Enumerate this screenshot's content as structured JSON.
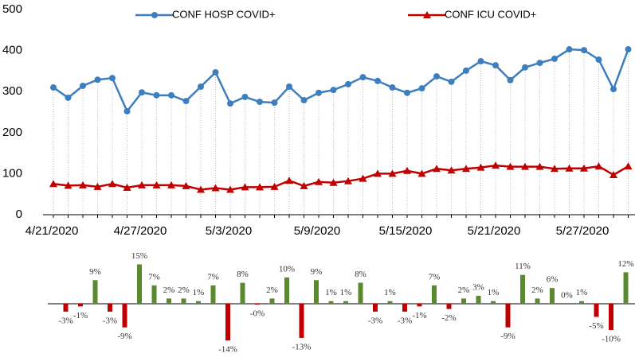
{
  "chart_data": [
    {
      "type": "line",
      "categories": [
        "4/21/2020",
        null,
        null,
        null,
        null,
        null,
        "4/27/2020",
        null,
        null,
        null,
        null,
        null,
        "5/3/2020",
        null,
        null,
        null,
        null,
        null,
        "5/9/2020",
        null,
        null,
        null,
        null,
        null,
        "5/15/2020",
        null,
        null,
        null,
        null,
        null,
        "5/21/2020",
        null,
        null,
        null,
        null,
        null,
        "5/27/2020",
        null,
        null,
        null
      ],
      "series": [
        {
          "name": "CONF HOSP COVID+",
          "color": "#3d7ebf",
          "marker": "circle",
          "values": [
            310,
            285,
            314,
            329,
            333,
            252,
            298,
            291,
            291,
            277,
            312,
            347,
            271,
            287,
            275,
            273,
            312,
            279,
            297,
            304,
            318,
            335,
            326,
            310,
            297,
            308,
            337,
            324,
            351,
            374,
            364,
            328,
            359,
            370,
            380,
            403,
            401,
            378,
            306,
            403
          ]
        },
        {
          "name": "CONF ICU COVID+",
          "color": "#c00000",
          "marker": "triangle",
          "values": [
            75,
            71,
            72,
            68,
            75,
            66,
            72,
            72,
            72,
            70,
            61,
            65,
            61,
            67,
            67,
            68,
            83,
            70,
            80,
            78,
            82,
            88,
            100,
            100,
            107,
            100,
            112,
            108,
            112,
            115,
            120,
            117,
            117,
            117,
            112,
            113,
            113,
            118,
            97,
            118
          ]
        }
      ],
      "ylim": [
        0,
        500
      ],
      "yticks": [
        0,
        100,
        200,
        300,
        400,
        500
      ],
      "drop_lines": true
    },
    {
      "type": "bar",
      "values": [
        -3,
        -1,
        9,
        -3,
        -9,
        15,
        7,
        2,
        2,
        1,
        7,
        -14,
        8,
        -0.3,
        2,
        10,
        -13,
        9,
        1,
        1,
        8,
        -3,
        1,
        -3,
        -1,
        7,
        -2,
        2,
        3,
        1,
        -9,
        11,
        2,
        6,
        0,
        1,
        -5,
        -10,
        12
      ],
      "value_labels": [
        "-3%",
        "-1%",
        "9%",
        "-3%",
        "-9%",
        "15%",
        "7%",
        "2%",
        "2%",
        "1%",
        "7%",
        "-14%",
        "8%",
        "-0%",
        "2%",
        "10%",
        "-13%",
        "9%",
        "1%",
        "1%",
        "8%",
        "-3%",
        "1%",
        "-3%",
        "-1%",
        "7%",
        "-2%",
        "2%",
        "3%",
        "1%",
        "-9%",
        "11%",
        "2%",
        "6%",
        "0%",
        "1%",
        "-5%",
        "-10%",
        "12%"
      ],
      "positive_color": "#5a8a2e",
      "negative_color": "#c00000",
      "ylim": [
        -20,
        20
      ]
    }
  ]
}
